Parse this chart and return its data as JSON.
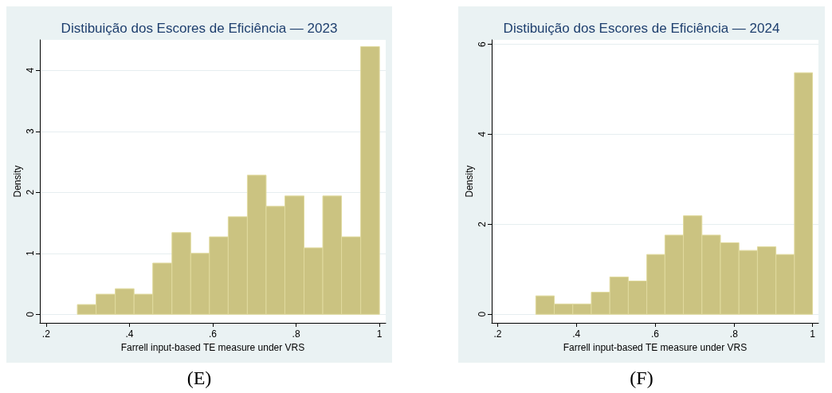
{
  "chart_data": [
    {
      "type": "histogram",
      "title": "Distibuição dos Escores de Eficiência — 2023",
      "xlabel": "Farrell input-based TE measure under VRS",
      "ylabel": "Density",
      "color": "#cbc381",
      "bins": [
        0.275,
        0.32,
        0.366,
        0.411,
        0.456,
        0.502,
        0.547,
        0.592,
        0.637,
        0.683,
        0.728,
        0.773,
        0.819,
        0.864,
        0.909,
        0.955,
        1.0
      ],
      "values": [
        0.16,
        0.33,
        0.42,
        0.33,
        0.84,
        1.34,
        1.0,
        1.27,
        1.6,
        2.28,
        1.77,
        1.94,
        1.09,
        1.94,
        1.27,
        4.39
      ],
      "xlim": [
        0.185,
        1.015
      ],
      "xticks": [
        {
          "value": 0.2,
          "label": ".2"
        },
        {
          "value": 0.4,
          "label": ".4"
        },
        {
          "value": 0.6,
          "label": ".6"
        },
        {
          "value": 0.8,
          "label": ".8"
        },
        1
      ],
      "ylim": [
        -0.14,
        4.5
      ],
      "yticks": [
        0,
        1,
        2,
        3,
        4
      ],
      "grid": "y",
      "annotations": [
        "(E)"
      ]
    },
    {
      "type": "histogram",
      "title": "Distibuição dos Escores de Eficiência — 2024",
      "xlabel": "Farrell input-based TE measure under VRS",
      "ylabel": "Density",
      "color": "#cbc381",
      "bins": [
        0.297,
        0.344,
        0.391,
        0.438,
        0.485,
        0.532,
        0.579,
        0.625,
        0.672,
        0.719,
        0.766,
        0.813,
        0.86,
        0.907,
        0.954,
        1.0
      ],
      "values": [
        0.41,
        0.23,
        0.23,
        0.49,
        0.83,
        0.74,
        1.33,
        1.76,
        2.19,
        1.76,
        1.59,
        1.42,
        1.5,
        1.33,
        5.37
      ],
      "xlim": [
        0.185,
        1.015
      ],
      "xticks": [
        {
          "value": 0.2,
          "label": ".2"
        },
        {
          "value": 0.4,
          "label": ".4"
        },
        {
          "value": 0.6,
          "label": ".6"
        },
        {
          "value": 0.8,
          "label": ".8"
        },
        1
      ],
      "ylim": [
        -0.19,
        6.1
      ],
      "yticks": [
        0,
        2,
        4,
        6
      ],
      "grid": "y",
      "annotations": [
        "(F)"
      ]
    }
  ]
}
